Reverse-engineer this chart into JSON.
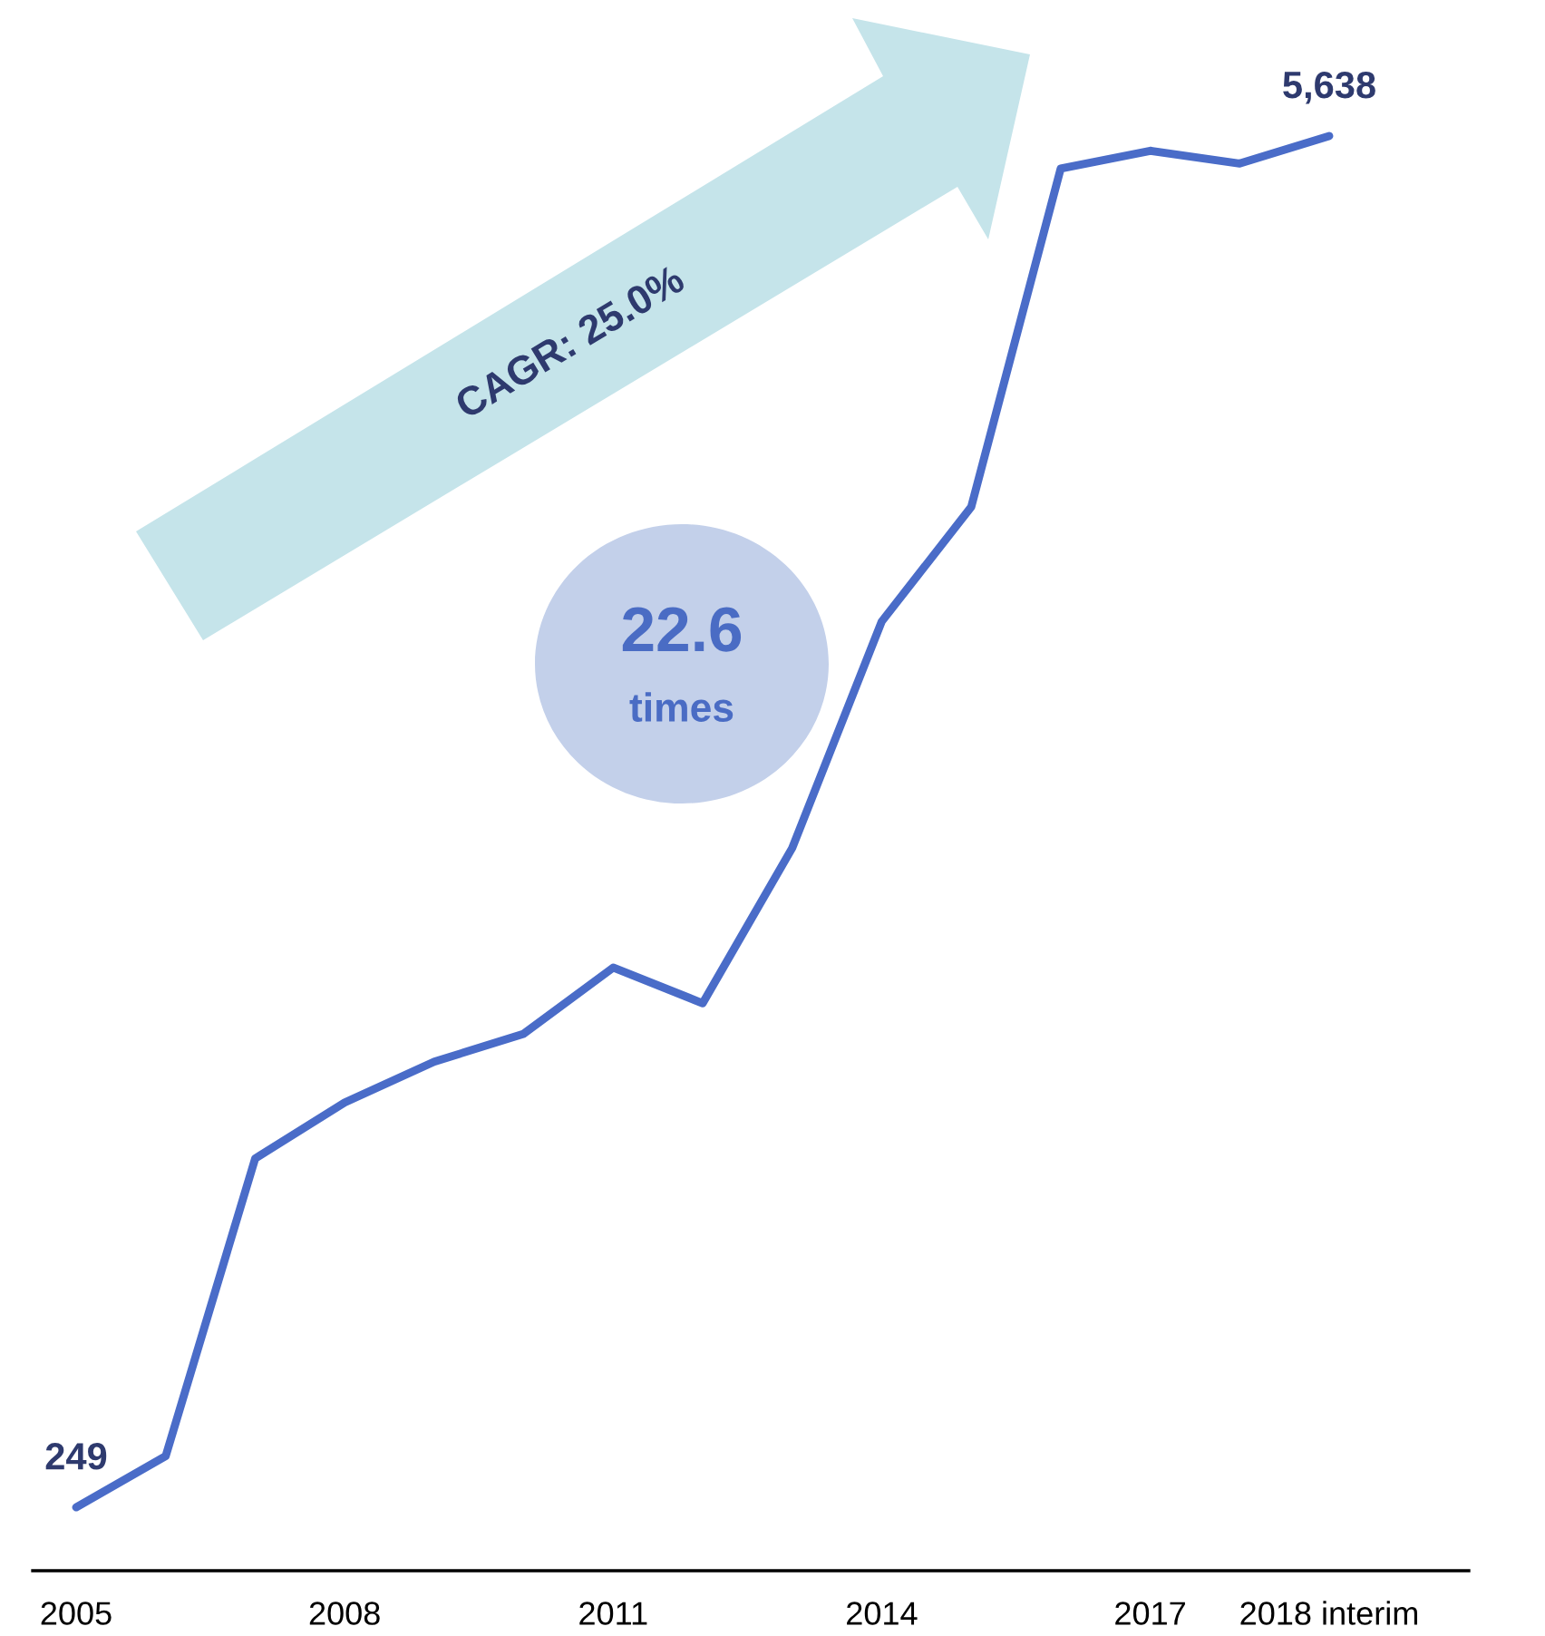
{
  "chart_data": {
    "type": "line",
    "tick_labels": "x",
    "categories": [
      "2005",
      null,
      null,
      "2008",
      null,
      null,
      "2011",
      null,
      null,
      "2014",
      null,
      null,
      "2017",
      null,
      "2018 interim"
    ],
    "values": [
      249,
      450,
      1620,
      1840,
      2000,
      2110,
      2370,
      2230,
      2840,
      3730,
      4180,
      5510,
      5580,
      5530,
      5638
    ],
    "color": "#4a6cc8",
    "value_labels": [
      "249",
      null,
      null,
      null,
      null,
      null,
      null,
      null,
      null,
      null,
      null,
      null,
      null,
      null,
      "5,638"
    ],
    "annotations": [
      "CAGR: 25.0%",
      "22.6",
      "times"
    ]
  }
}
